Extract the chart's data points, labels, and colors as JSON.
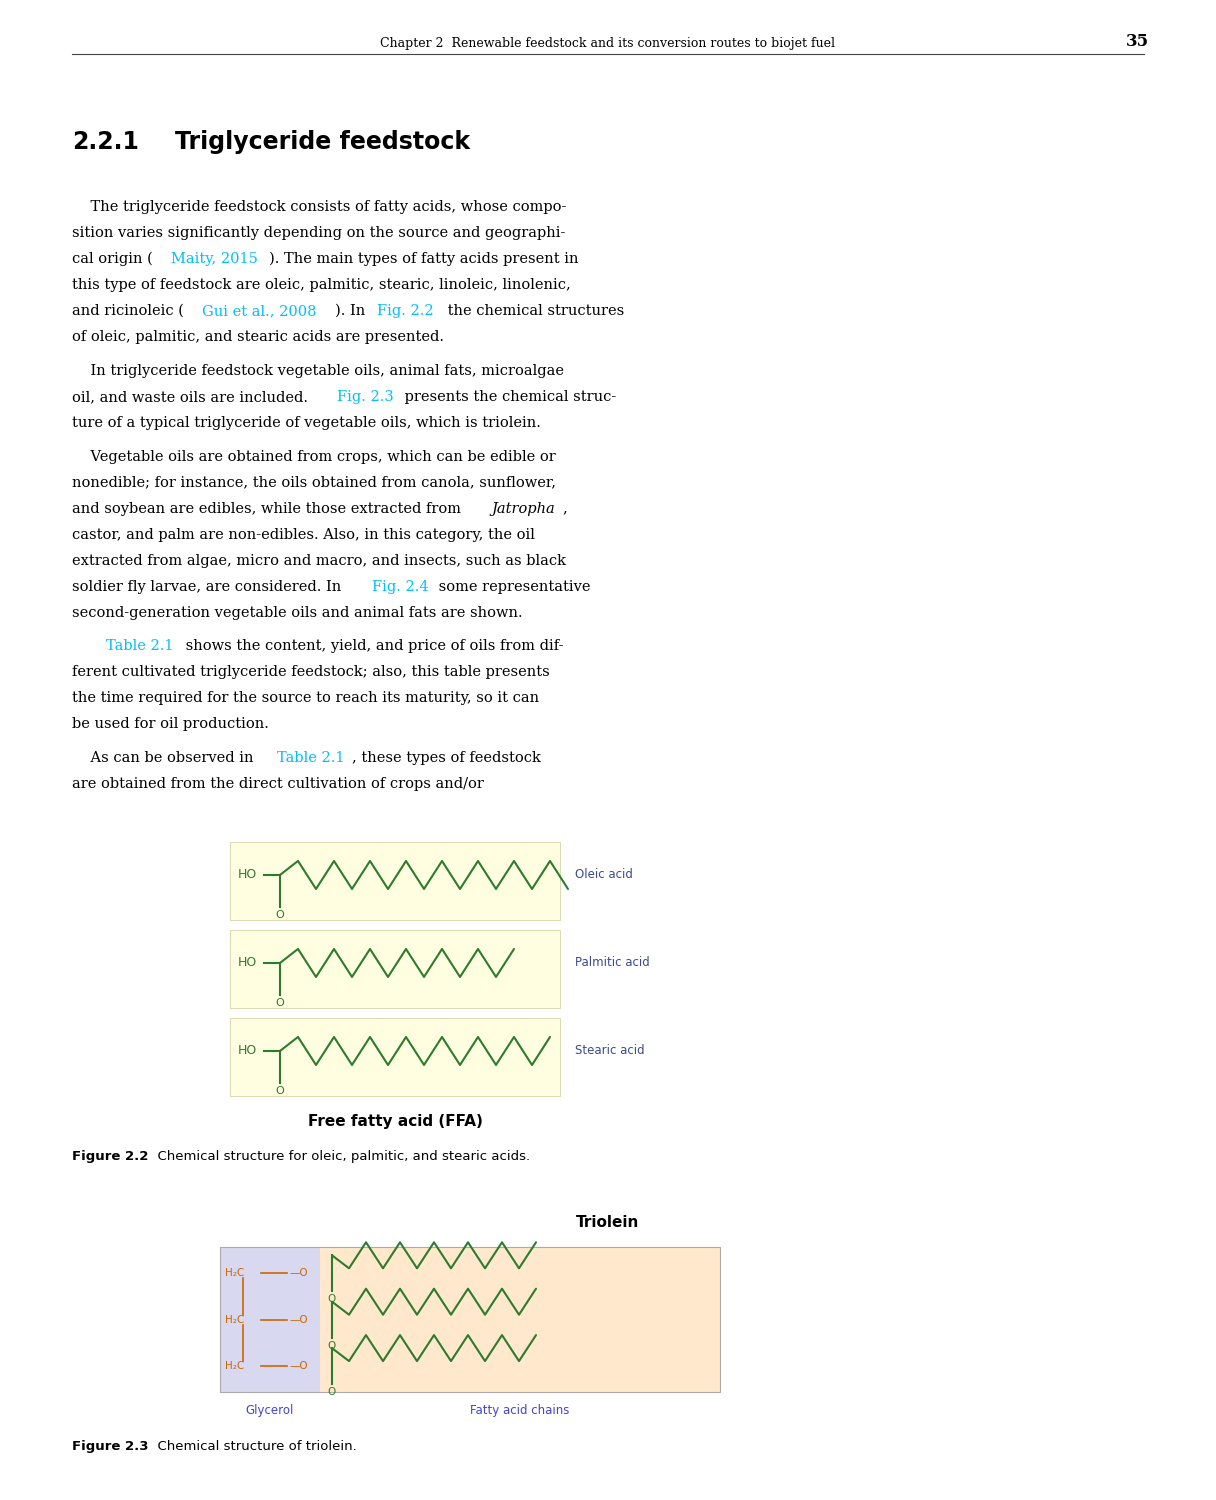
{
  "page_width": 12.16,
  "page_height": 15.0,
  "background_color": "#ffffff",
  "header_text": "Chapter 2  Renewable feedstock and its conversion routes to biojet fuel",
  "header_page_num": "35",
  "link_color": "#00BFFF",
  "figure_label_color": "#3B4B8C",
  "fig2_caption_bold": "Figure 2.2",
  "fig2_caption_rest": "  Chemical structure for oleic, palmitic, and stearic acids.",
  "fig3_caption_bold": "Figure 2.3",
  "fig3_caption_rest": "  Chemical structure of triolein.",
  "fig2_label": "Free fatty acid (FFA)",
  "fig3_label": "Triolein",
  "oleic_label": "Oleic acid",
  "palmitic_label": "Palmitic acid",
  "stearic_label": "Stearic acid",
  "glycerol_label": "Glycerol",
  "fatty_acid_label": "Fatty acid chains",
  "ffa_bg_color": "#FFFEE0",
  "triolein_bg_color": "#FFE8CC",
  "triolein_glycerol_bg": "#E8E8FF",
  "structure_line_color": "#2D7B2D",
  "triolein_glycerol_color": "#4444CC",
  "triolein_fatty_color": "#4444CC",
  "triolein_h2c_color": "#CC6600"
}
